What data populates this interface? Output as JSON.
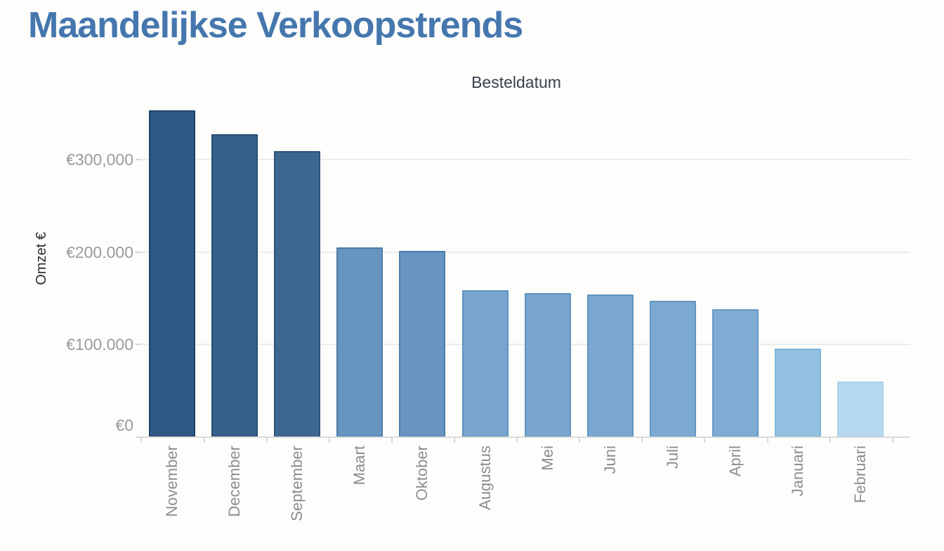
{
  "title": {
    "text": "Maandelijkse Verkoopstrends",
    "color": "#4577ae"
  },
  "chart_data": {
    "type": "bar",
    "title": "Maandelijkse Verkoopstrends",
    "x_axis_title": "Besteldatum",
    "y_axis_title": "Omzet €",
    "sort": "descending by value",
    "legend": "none",
    "grid": "horizontal-light",
    "categories": [
      "November",
      "December",
      "September",
      "Maart",
      "Oktober",
      "Augustus",
      "Mei",
      "Juni",
      "Juli",
      "April",
      "Januari",
      "Februari"
    ],
    "values": [
      353000,
      327000,
      309000,
      205000,
      201000,
      159000,
      156000,
      154000,
      147000,
      138000,
      96000,
      60000
    ],
    "bar_colors": [
      "#2e5984",
      "#35608a",
      "#3d6791",
      "#6695c2",
      "#6794c1",
      "#77a5ce",
      "#79a6cf",
      "#7aa7cf",
      "#7ca9d0",
      "#80acd3",
      "#92c0e0",
      "#b7d9ef"
    ],
    "bar_border_colors": [
      "#1e4368",
      "#254d72",
      "#2b547a",
      "#4c7ca8",
      "#4c7ca8",
      "#5e92bd",
      "#6093be",
      "#6194bf",
      "#6396c0",
      "#6899c3",
      "#7fb3d8",
      "#a6cfe9"
    ],
    "y_ticks": [
      {
        "value": 300000,
        "label": "€300,000"
      },
      {
        "value": 200000,
        "label": "€200.000"
      },
      {
        "value": 100000,
        "label": "€100.000"
      },
      {
        "value": 0,
        "label": "€0"
      }
    ],
    "ylim": [
      0,
      360000
    ],
    "styles": {
      "background": "#fdfdfc",
      "grid_color": "#ececec",
      "axis_line_color": "#dadada",
      "tick_color": "#d8d8d8",
      "y_tick_label_color": "#9b9b9b",
      "x_tick_label_color": "#8d8d8d",
      "x_axis_title_color": "#3a404b",
      "y_axis_title_color": "#2b2b2b"
    }
  }
}
